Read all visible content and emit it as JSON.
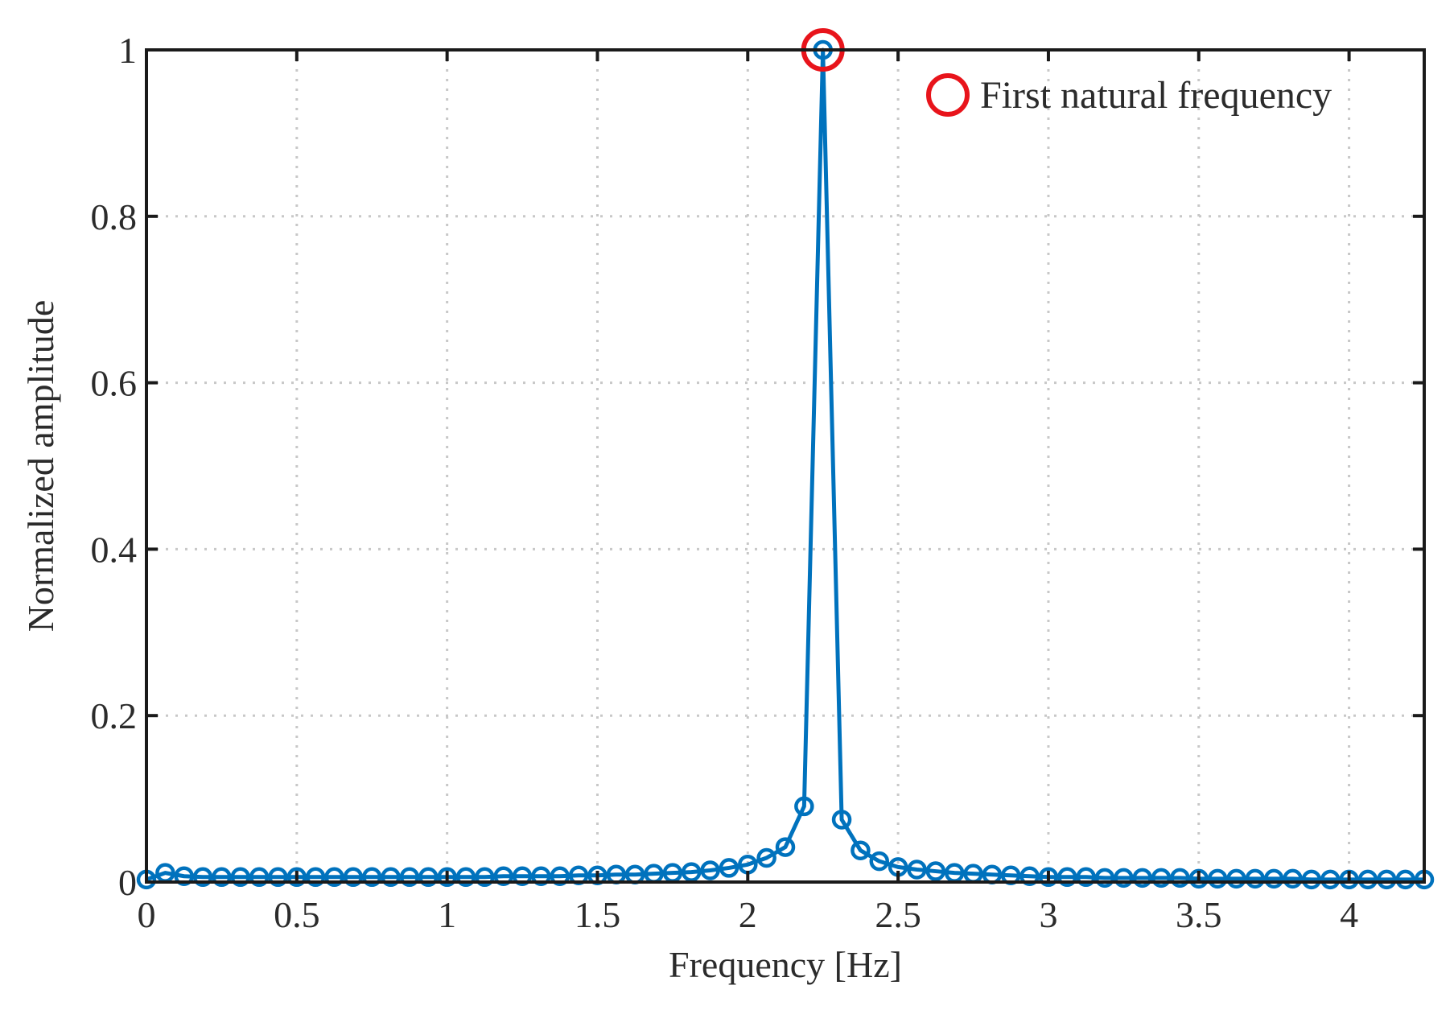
{
  "chart_data": {
    "type": "line",
    "title": "",
    "xlabel": "Frequency [Hz]",
    "ylabel": "Normalized amplitude",
    "xlim": [
      0,
      4.25
    ],
    "ylim": [
      0,
      1
    ],
    "xticks": [
      0,
      0.5,
      1,
      1.5,
      2,
      2.5,
      3,
      3.5,
      4
    ],
    "xtick_labels": [
      "0",
      "0.5",
      "1",
      "1.5",
      "2",
      "2.5",
      "3",
      "3.5",
      "4"
    ],
    "yticks": [
      0,
      0.2,
      0.4,
      0.6,
      0.8,
      1
    ],
    "ytick_labels": [
      "0",
      "0.2",
      "0.4",
      "0.6",
      "0.8",
      "1"
    ],
    "grid": true,
    "grid_style": "dotted",
    "legend_position": "top-right",
    "legend_entries": [
      {
        "label": "First natural frequency",
        "marker": "circle",
        "color": "#e8141b"
      }
    ],
    "series": [
      {
        "color": "#0072bd",
        "marker": "circle",
        "x": [
          0.0,
          0.0625,
          0.125,
          0.1875,
          0.25,
          0.3125,
          0.375,
          0.4375,
          0.5,
          0.5625,
          0.625,
          0.6875,
          0.75,
          0.8125,
          0.875,
          0.9375,
          1.0,
          1.0625,
          1.125,
          1.1875,
          1.25,
          1.3125,
          1.375,
          1.4375,
          1.5,
          1.5625,
          1.625,
          1.6875,
          1.75,
          1.8125,
          1.875,
          1.9375,
          2.0,
          2.0625,
          2.125,
          2.1875,
          2.25,
          2.3125,
          2.375,
          2.4375,
          2.5,
          2.5625,
          2.625,
          2.6875,
          2.75,
          2.8125,
          2.875,
          2.9375,
          3.0,
          3.0625,
          3.125,
          3.1875,
          3.25,
          3.3125,
          3.375,
          3.4375,
          3.5,
          3.5625,
          3.625,
          3.6875,
          3.75,
          3.8125,
          3.875,
          3.9375,
          4.0,
          4.0625,
          4.125,
          4.1875,
          4.25
        ],
        "y": [
          0.003,
          0.011,
          0.007,
          0.006,
          0.006,
          0.006,
          0.006,
          0.006,
          0.006,
          0.006,
          0.006,
          0.006,
          0.006,
          0.006,
          0.006,
          0.006,
          0.006,
          0.006,
          0.006,
          0.007,
          0.007,
          0.007,
          0.007,
          0.008,
          0.008,
          0.009,
          0.009,
          0.01,
          0.011,
          0.012,
          0.014,
          0.017,
          0.021,
          0.029,
          0.042,
          0.091,
          1.0,
          0.075,
          0.038,
          0.025,
          0.018,
          0.015,
          0.013,
          0.011,
          0.01,
          0.009,
          0.008,
          0.007,
          0.006,
          0.006,
          0.006,
          0.005,
          0.005,
          0.005,
          0.005,
          0.005,
          0.004,
          0.004,
          0.004,
          0.004,
          0.004,
          0.004,
          0.003,
          0.003,
          0.003,
          0.003,
          0.003,
          0.003,
          0.003
        ]
      }
    ],
    "highlight": {
      "label": "First natural frequency",
      "x": 2.25,
      "y": 1.0,
      "color": "#e8141b"
    }
  }
}
